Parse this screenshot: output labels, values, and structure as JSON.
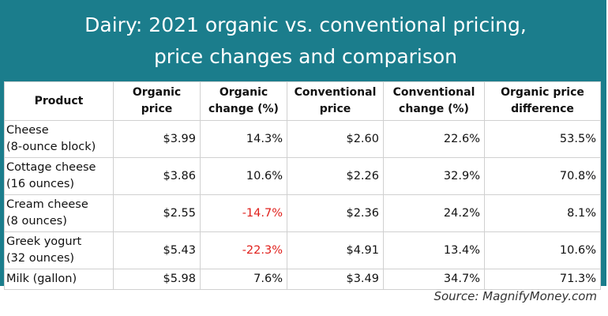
{
  "header": {
    "title": "Dairy: 2021 organic vs. conventional pricing,\nprice changes and comparison"
  },
  "table": {
    "columns": [
      "Product",
      "Organic price",
      "Organic change (%)",
      "Conventional price",
      "Conventional change (%)",
      "Organic price difference"
    ],
    "rows": [
      [
        "Cheese\n(8-ounce block)",
        "$3.99",
        "14.3%",
        "$2.60",
        "22.6%",
        "53.5%"
      ],
      [
        "Cottage cheese\n(16 ounces)",
        "$3.86",
        "10.6%",
        "$2.26",
        "32.9%",
        "70.8%"
      ],
      [
        "Cream cheese\n(8 ounces)",
        "$2.55",
        "-14.7%",
        "$2.36",
        "24.2%",
        "8.1%"
      ],
      [
        "Greek yogurt\n(32 ounces)",
        "$5.43",
        "-22.3%",
        "$4.91",
        "13.4%",
        "10.6%"
      ],
      [
        "Milk (gallon)",
        "$5.98",
        "7.6%",
        "$3.49",
        "34.7%",
        "71.3%"
      ]
    ]
  },
  "footer": {
    "source": "Source: MagnifyMoney.com"
  }
}
